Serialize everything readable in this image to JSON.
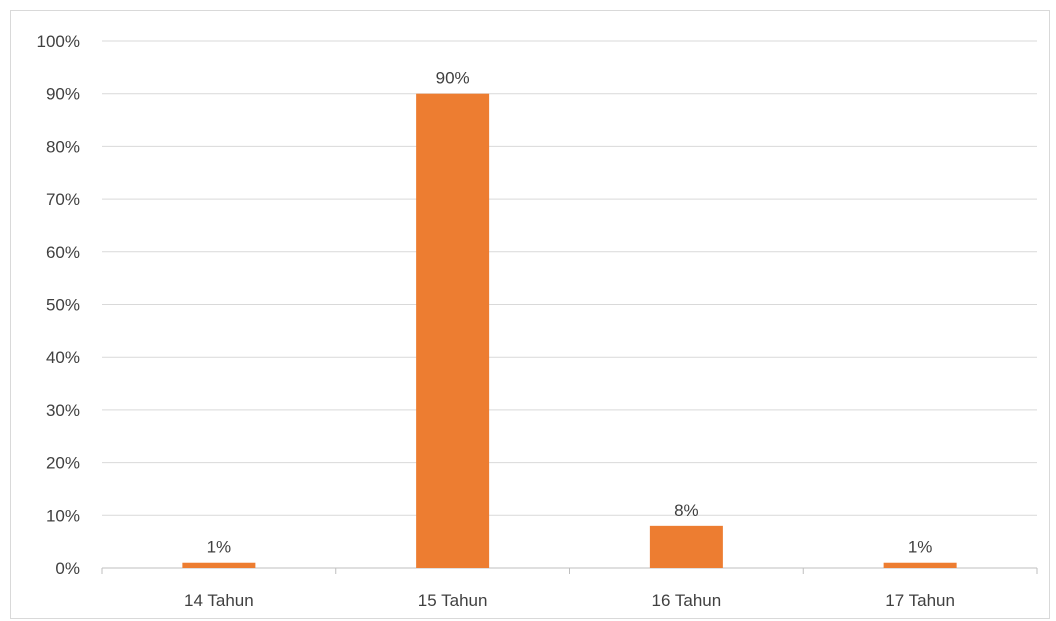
{
  "chart_data": {
    "type": "bar",
    "title": "",
    "xlabel": "",
    "ylabel": "",
    "categories": [
      "14 Tahun",
      "15 Tahun",
      "16 Tahun",
      "17 Tahun"
    ],
    "values": [
      1,
      90,
      8,
      1
    ],
    "data_labels": [
      "1%",
      "90%",
      "8%",
      "1%"
    ],
    "ylim": [
      0,
      100
    ],
    "y_ticks": [
      0,
      10,
      20,
      30,
      40,
      50,
      60,
      70,
      80,
      90,
      100
    ],
    "y_tick_labels": [
      "0%",
      "10%",
      "20%",
      "30%",
      "40%",
      "50%",
      "60%",
      "70%",
      "80%",
      "90%",
      "100%"
    ],
    "grid": true,
    "legend": "none",
    "colors": {
      "bar": "#ED7D31",
      "grid": "#D9D9D9",
      "axis": "#BFBFBF",
      "text": "#404040"
    }
  }
}
